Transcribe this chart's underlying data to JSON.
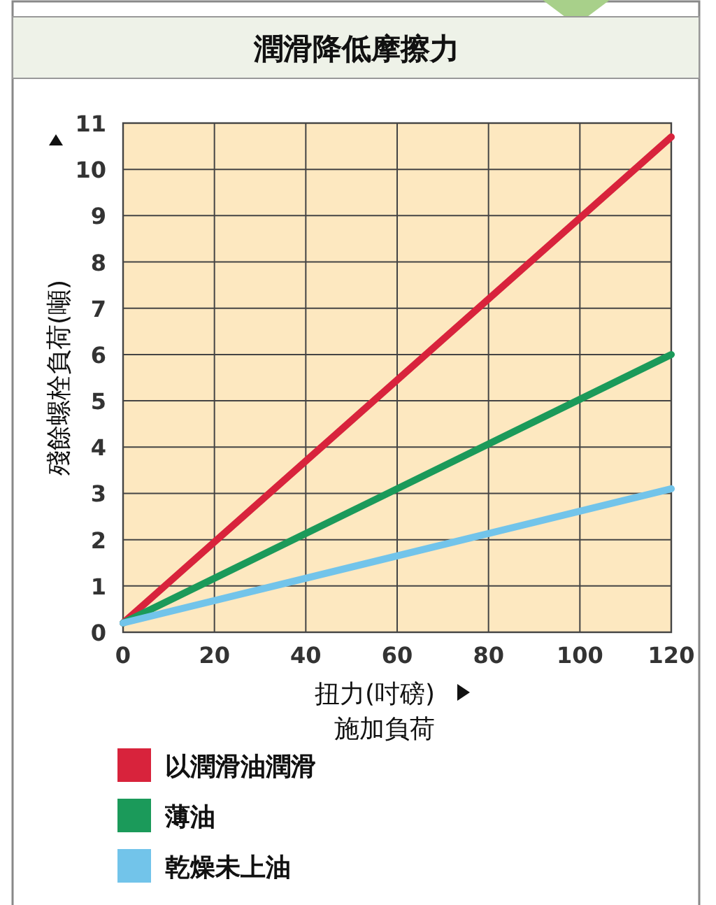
{
  "chart_data": {
    "type": "line",
    "title": "潤滑降低摩擦力",
    "xlabel": "扭力(吋磅)",
    "ylabel": "殘餘螺栓負荷(噸)",
    "annotations": [
      "施加負荷"
    ],
    "x": [
      0,
      120
    ],
    "series": [
      {
        "name": "以潤滑油潤滑",
        "color": "#d8233c",
        "values": [
          0.2,
          10.7
        ]
      },
      {
        "name": "薄油",
        "color": "#1b9a5a",
        "values": [
          0.2,
          6.0
        ]
      },
      {
        "name": "乾燥未上油",
        "color": "#72c4ea",
        "values": [
          0.2,
          3.1
        ]
      }
    ],
    "xlim": [
      0,
      120
    ],
    "ylim": [
      0,
      11
    ],
    "xticks": [
      0,
      20,
      40,
      60,
      80,
      100,
      120
    ],
    "yticks": [
      0,
      1,
      2,
      3,
      4,
      5,
      6,
      7,
      8,
      9,
      10,
      11
    ],
    "grid": true,
    "legend": "bottom",
    "marker": "none",
    "line_style": "solid"
  }
}
